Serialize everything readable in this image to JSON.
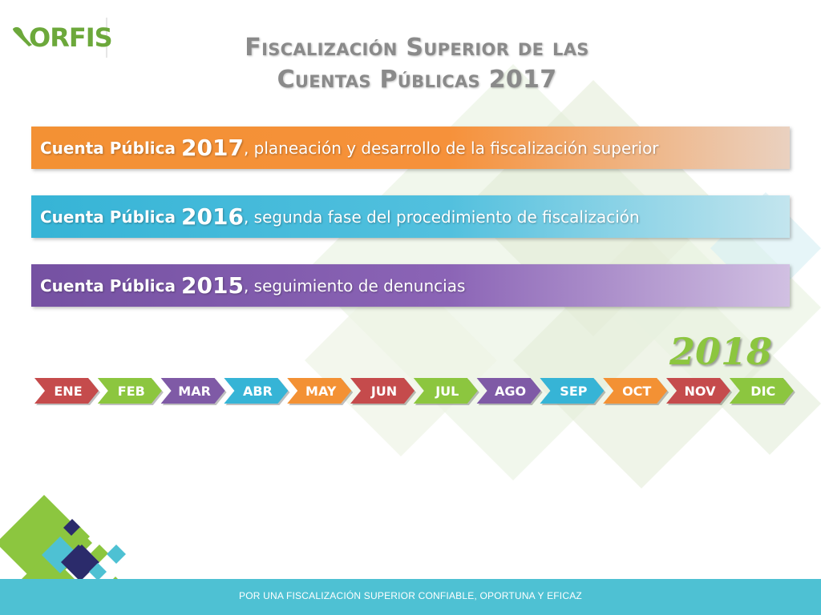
{
  "logo": {
    "text": "ORFIS",
    "color": "#6ca83b"
  },
  "title": {
    "line1": "Fiscalización Superior de las",
    "line2": "Cuentas Públicas 2017"
  },
  "rows": [
    {
      "label": "Cuenta Pública",
      "year": "2017",
      "text": ", planeación y desarrollo de la fiscalización superior"
    },
    {
      "label": "Cuenta Pública",
      "year": "2016",
      "text": ", segunda fase del procedimiento de fiscalización"
    },
    {
      "label": "Cuenta Pública",
      "year": "2015",
      "text": ", seguimiento de denuncias"
    }
  ],
  "timeline": {
    "year": "2018",
    "months": [
      {
        "label": "ENE",
        "color": "#c54b4c"
      },
      {
        "label": "FEB",
        "color": "#8cc63f"
      },
      {
        "label": "MAR",
        "color": "#7f5aa6"
      },
      {
        "label": "ABR",
        "color": "#36b4d6"
      },
      {
        "label": "MAY",
        "color": "#f39134"
      },
      {
        "label": "JUN",
        "color": "#c54b4c"
      },
      {
        "label": "JUL",
        "color": "#8cc63f"
      },
      {
        "label": "AGO",
        "color": "#7f5aa6"
      },
      {
        "label": "SEP",
        "color": "#36b4d6"
      },
      {
        "label": "OCT",
        "color": "#f39134"
      },
      {
        "label": "NOV",
        "color": "#c54b4c"
      },
      {
        "label": "DIC",
        "color": "#8cc63f"
      }
    ]
  },
  "footer": {
    "text": "POR UNA FISCALIZACIÓN SUPERIOR CONFIABLE, OPORTUNA Y EFICAZ"
  }
}
